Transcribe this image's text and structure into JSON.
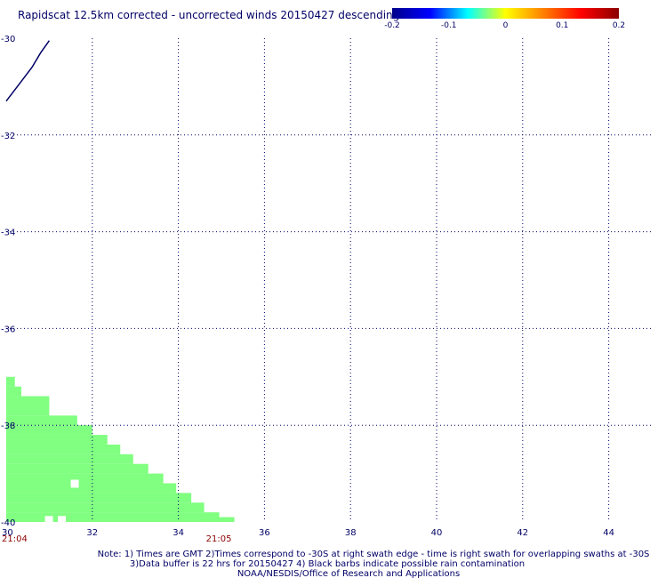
{
  "chart_data": {
    "type": "heatmap",
    "title": "Rapidscat 12.5km corrected - uncorrected winds 20150427 descending",
    "xlim": [
      30,
      45
    ],
    "ylim": [
      -40,
      -30
    ],
    "x_ticks": [
      "30",
      "32",
      "34",
      "36",
      "38",
      "40",
      "42",
      "44"
    ],
    "y_ticks": [
      "-30",
      "-32",
      "-34",
      "-36",
      "-38",
      "-40"
    ],
    "grid": true,
    "colorbar": {
      "placement": "top-right",
      "ticks": [
        "-0.2",
        "-0.1",
        "0",
        "0.1",
        "0.2"
      ],
      "range": [
        -0.2,
        0.2
      ],
      "stops": [
        "#00008b",
        "#0000ff",
        "#00ffff",
        "#ffff00",
        "#ff8000",
        "#ff0000",
        "#8b0000"
      ]
    },
    "time_labels": [
      {
        "text": "21:04",
        "lon": 30
      },
      {
        "text": "21:05",
        "lon": 35.2
      }
    ],
    "swath": {
      "value": 0.0,
      "color": "#80ff80",
      "rows": [
        [
          -37.1,
          30.0,
          30.2
        ],
        [
          -37.3,
          30.0,
          30.35
        ],
        [
          -37.5,
          30.0,
          31.0
        ],
        [
          -37.7,
          30.0,
          31.0
        ],
        [
          -37.9,
          30.0,
          31.65
        ],
        [
          -38.1,
          30.0,
          32.0
        ],
        [
          -38.3,
          30.0,
          32.35
        ],
        [
          -38.5,
          30.0,
          32.65
        ],
        [
          -38.7,
          30.0,
          32.95
        ],
        [
          -38.9,
          30.0,
          33.3
        ],
        [
          -39.1,
          30.0,
          33.65
        ],
        [
          -39.3,
          30.0,
          33.95
        ],
        [
          -39.5,
          30.0,
          34.3
        ],
        [
          -39.7,
          30.0,
          34.6
        ],
        [
          -39.9,
          30.0,
          34.95
        ]
      ],
      "lower_edge": [
        30.0,
        35.3
      ],
      "holes": [
        [
          31.5,
          -39.2
        ],
        [
          30.9,
          -39.95
        ],
        [
          31.2,
          -39.95
        ]
      ]
    },
    "coast_line": [
      [
        30.0,
        -31.3
      ],
      [
        30.3,
        -30.95
      ],
      [
        30.6,
        -30.6
      ],
      [
        30.8,
        -30.3
      ],
      [
        31.0,
        -30.05
      ]
    ],
    "note_lines": [
      "Note: 1) Times are GMT 2)Times correspond to -30S at right swath edge - time is right swath for overlapping swaths at -30S",
      "3)Data buffer is 22 hrs for 20150427 4) Black barbs indicate possible rain contamination",
      "NOAA/NESDIS/Office of Research and Applications"
    ]
  }
}
